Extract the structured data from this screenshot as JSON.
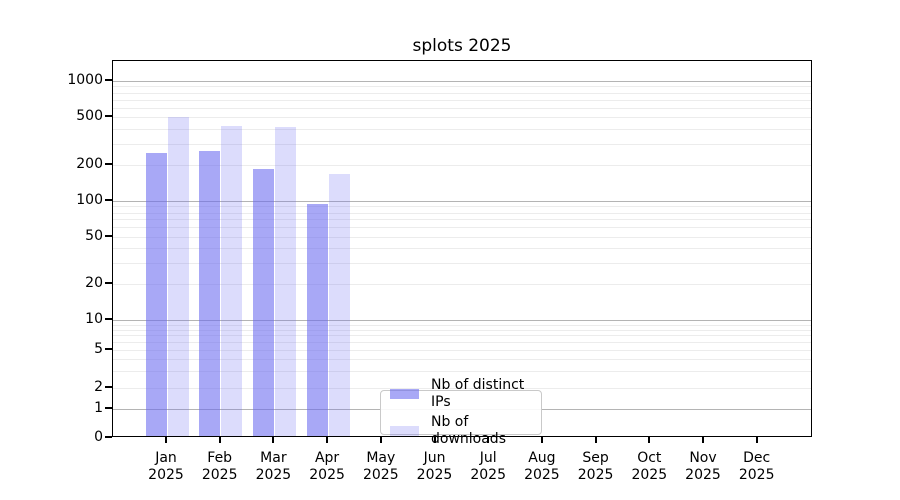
{
  "chart_data": {
    "type": "bar",
    "title": "splots 2025",
    "xlabel": "",
    "ylabel": "",
    "categories": [
      "Jan",
      "Feb",
      "Mar",
      "Apr",
      "May",
      "Jun",
      "Jul",
      "Aug",
      "Sep",
      "Oct",
      "Nov",
      "Dec"
    ],
    "x_tick_year": "2025",
    "series": [
      {
        "name": "Nb of distinct IPs",
        "color": "rgba(102,102,240,0.57)",
        "values": [
          250,
          262,
          185,
          94,
          null,
          null,
          null,
          null,
          null,
          null,
          null,
          null
        ]
      },
      {
        "name": "Nb of downloads",
        "color": "rgba(102,102,240,0.23)",
        "values": [
          500,
          420,
          410,
          167,
          null,
          null,
          null,
          null,
          null,
          null,
          null,
          null
        ]
      }
    ],
    "y_ticks": [
      0,
      1,
      2,
      5,
      10,
      20,
      50,
      100,
      200,
      500,
      1000
    ],
    "y_scale": "symlog",
    "ylim": [
      0,
      1200
    ],
    "grid": {
      "horizontal": true,
      "minor": true,
      "major_color": "#b4b4b4",
      "minor_color": "#ececec"
    },
    "legend_position": "lower center"
  }
}
